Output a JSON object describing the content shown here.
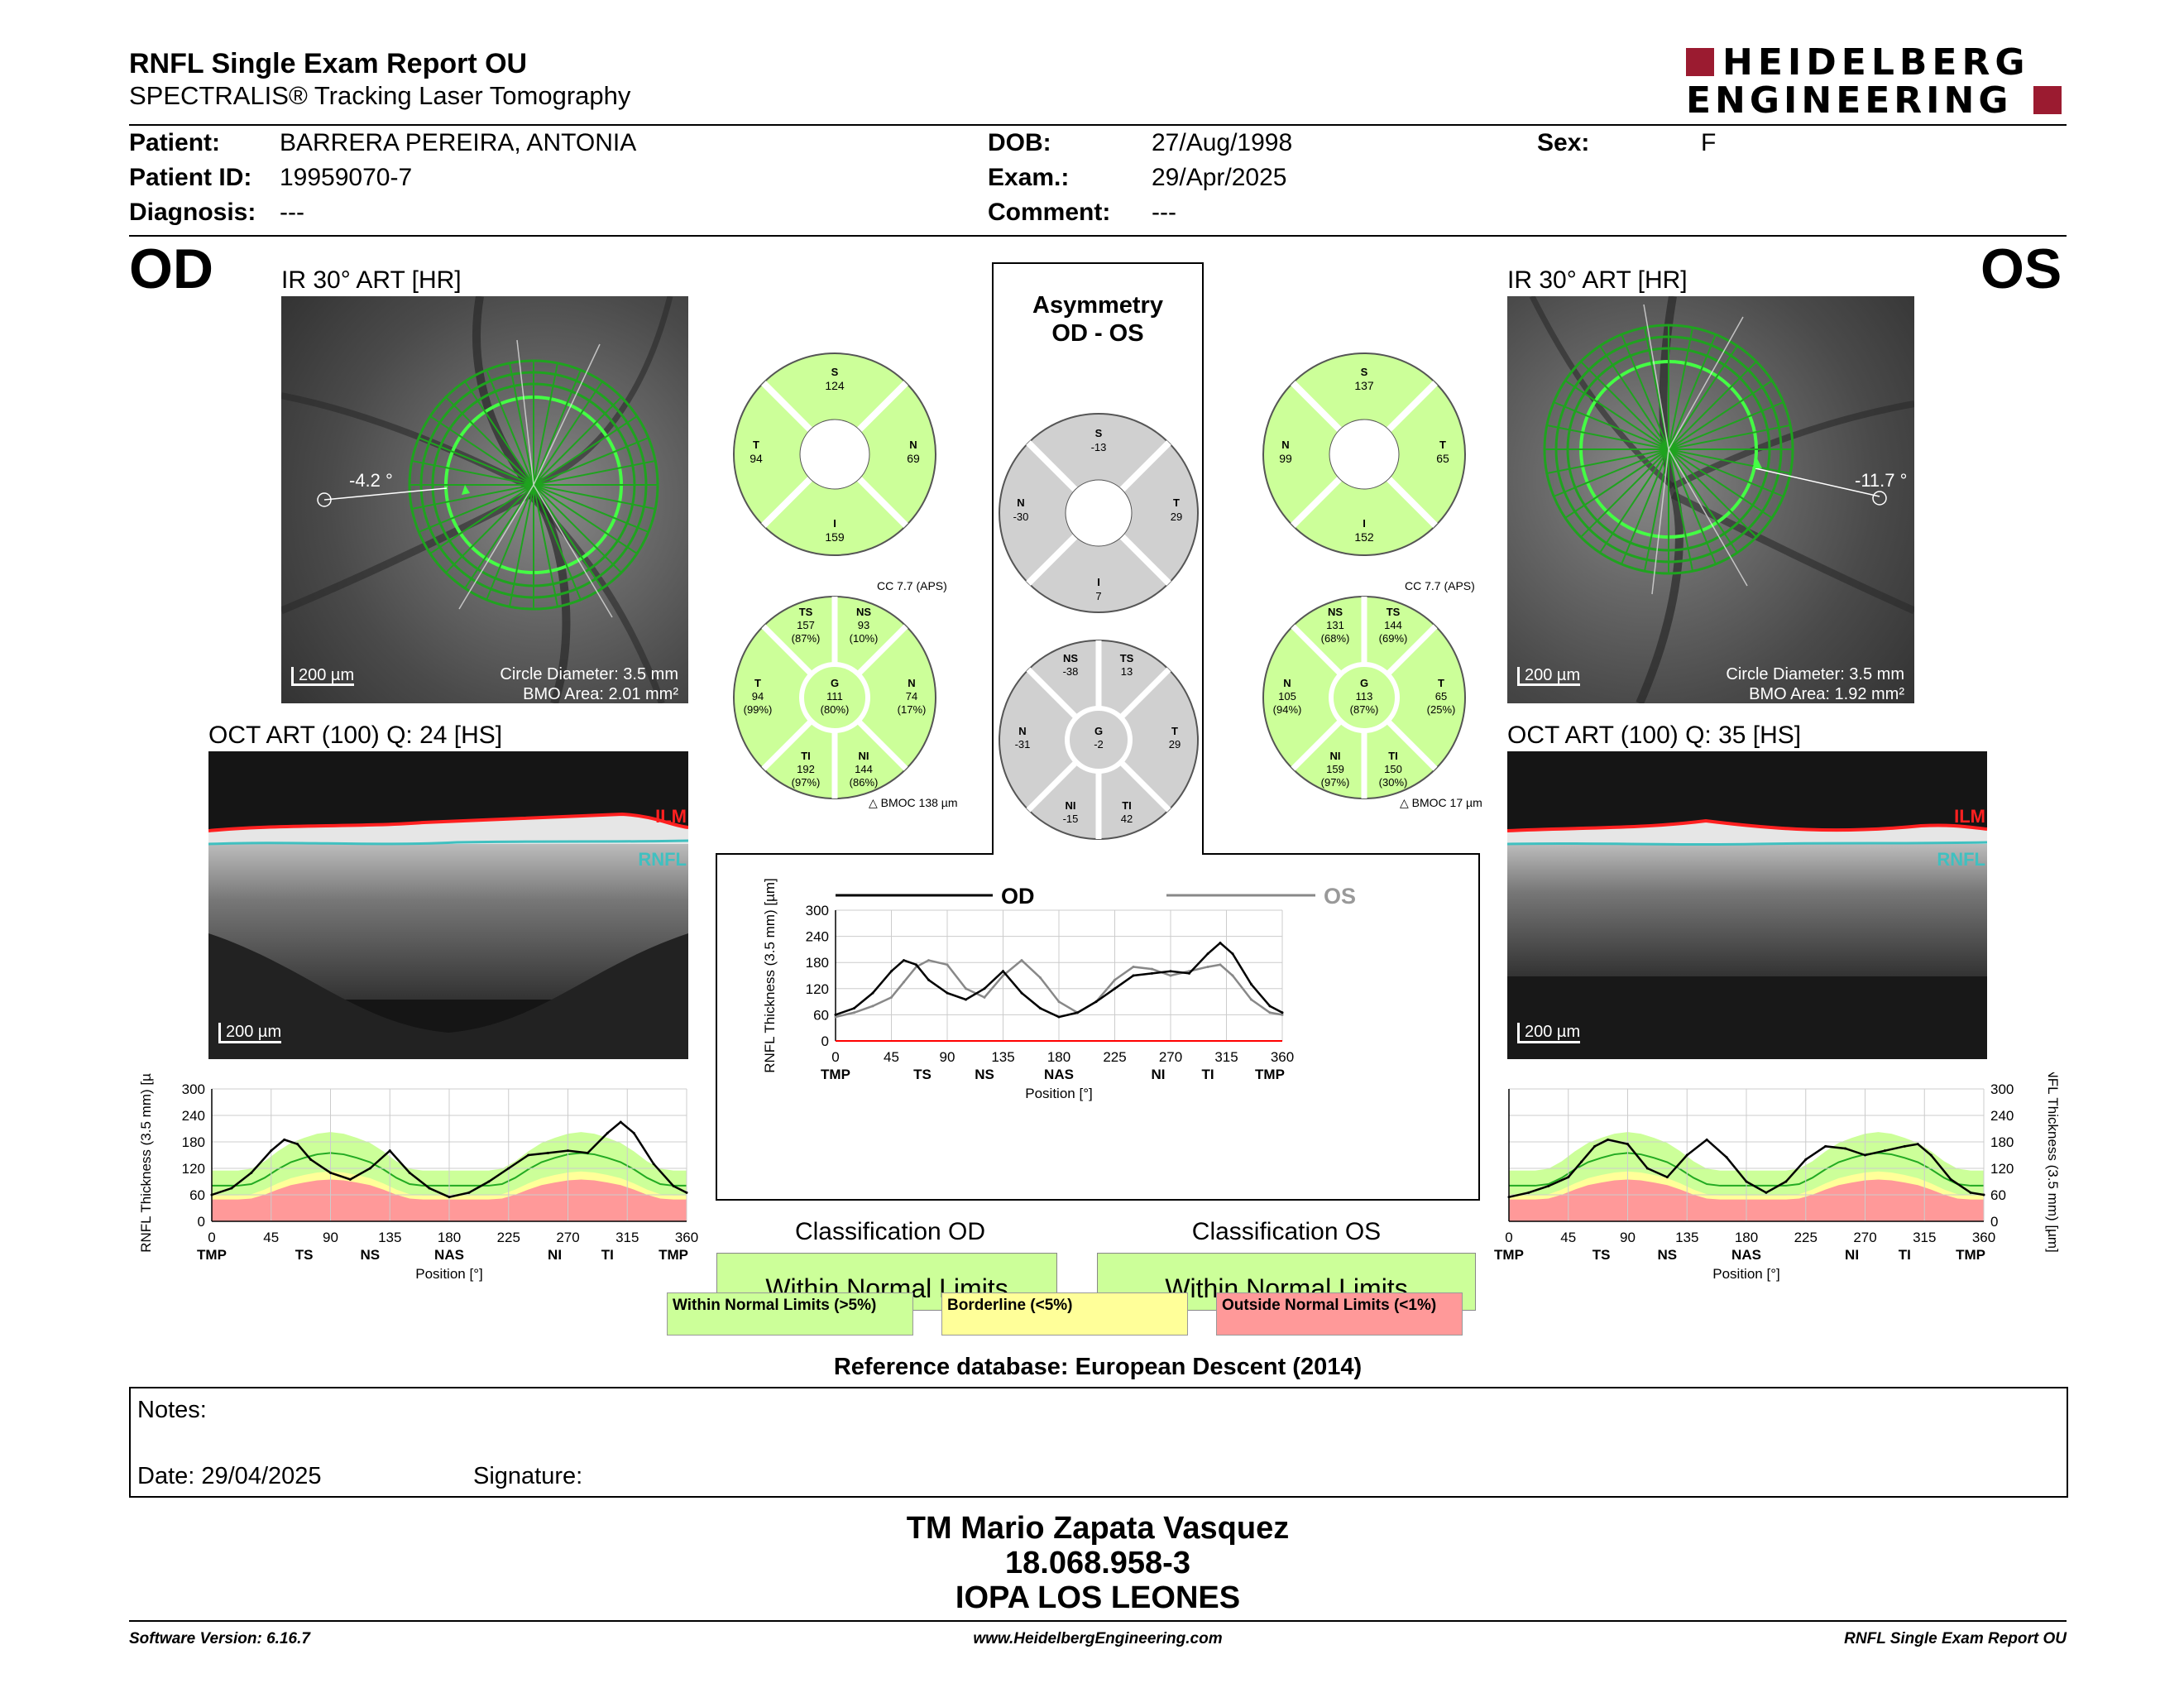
{
  "header": {
    "title": "RNFL Single Exam Report OU",
    "subtitle": "SPECTRALIS® Tracking Laser Tomography",
    "logo_line1": "HEIDELBERG",
    "logo_line2": "ENGINEERING"
  },
  "patient": {
    "patient_label": "Patient:",
    "patient_value": "BARRERA PEREIRA, ANTONIA",
    "id_label": "Patient ID:",
    "id_value": "19959070-7",
    "diag_label": "Diagnosis:",
    "diag_value": "---",
    "dob_label": "DOB:",
    "dob_value": "27/Aug/1998",
    "exam_label": "Exam.:",
    "exam_value": "29/Apr/2025",
    "comment_label": "Comment:",
    "comment_value": "---",
    "sex_label": "Sex:",
    "sex_value": "F"
  },
  "od": {
    "eye": "OD",
    "ir_title": "IR 30° ART [HR]",
    "angle": "-4.2 °",
    "scale": "200 µm",
    "circle_diameter": "Circle Diameter: 3.5 mm",
    "bmo_area": "BMO Area: 2.01 mm²",
    "oct_title": "OCT ART (100) Q: 24 [HS]",
    "ilm": "ILM",
    "rnfl": "RNFL",
    "oct_scale": "200 µm",
    "classification_title": "Classification OD",
    "classification": "Within Normal Limits",
    "quad": {
      "S": "124",
      "T": "94",
      "N": "69",
      "I": "159"
    },
    "sectors": {
      "cc": "CC 7.7 (APS)",
      "TS": [
        "157",
        "(87%)"
      ],
      "NS": [
        "93",
        "(10%)"
      ],
      "T": [
        "94",
        "(99%)"
      ],
      "G": [
        "111",
        "(80%)"
      ],
      "N": [
        "74",
        "(17%)"
      ],
      "TI": [
        "192",
        "(97%)"
      ],
      "NI": [
        "144",
        "(86%)"
      ],
      "bmoc": "BMOC 138 µm"
    }
  },
  "os": {
    "eye": "OS",
    "ir_title": "IR 30° ART [HR]",
    "angle": "-11.7 °",
    "scale": "200 µm",
    "circle_diameter": "Circle Diameter: 3.5 mm",
    "bmo_area": "BMO Area: 1.92 mm²",
    "oct_title": "OCT ART (100) Q: 35 [HS]",
    "ilm": "ILM",
    "rnfl": "RNFL",
    "oct_scale": "200 µm",
    "classification_title": "Classification OS",
    "classification": "Within Normal Limits",
    "quad": {
      "S": "137",
      "N": "99",
      "T": "65",
      "I": "152"
    },
    "sectors": {
      "cc": "CC 7.7 (APS)",
      "NS": [
        "131",
        "(68%)"
      ],
      "TS": [
        "144",
        "(69%)"
      ],
      "N": [
        "105",
        "(94%)"
      ],
      "G": [
        "113",
        "(87%)"
      ],
      "T": [
        "65",
        "(25%)"
      ],
      "NI": [
        "159",
        "(97%)"
      ],
      "TI": [
        "150",
        "(30%)"
      ],
      "bmoc": "BMOC 17 µm"
    }
  },
  "asymmetry": {
    "title1": "Asymmetry",
    "title2": "OD - OS",
    "quad": {
      "S": "-13",
      "N": "-30",
      "T": "29",
      "I": "7"
    },
    "sectors": {
      "NS": "-38",
      "TS": "13",
      "N": "-31",
      "G": "-2",
      "T": "29",
      "NI": "-15",
      "TI": "42"
    },
    "legend_od": "OD",
    "legend_os": "OS"
  },
  "charts_common": {
    "ylabel": "RNFL Thickness (3.5 mm) [µm]",
    "xlabel": "Position [°]",
    "x_ticks": [
      "0",
      "45",
      "90",
      "135",
      "180",
      "225",
      "270",
      "315",
      "360"
    ],
    "y_ticks": [
      "0",
      "60",
      "120",
      "180",
      "240",
      "300"
    ],
    "small_y_ticks": [
      "0",
      "60",
      "120",
      "180",
      "240",
      "300"
    ],
    "sector_labels": [
      [
        "TMP",
        0
      ],
      [
        "TS",
        70
      ],
      [
        "NS",
        120
      ],
      [
        "NAS",
        180
      ],
      [
        "NI",
        260
      ],
      [
        "TI",
        300
      ],
      [
        "TMP",
        350
      ]
    ]
  },
  "legend": {
    "normal": "Within Normal Limits (>5%)",
    "borderline": "Borderline (<5%)",
    "outside": "Outside Normal Limits (<1%)"
  },
  "reference": "Reference database: European Descent (2014)",
  "notes": {
    "notes_label": "Notes:",
    "date_label": "Date: 29/04/2025",
    "signature_label": "Signature:"
  },
  "signature_block": {
    "line1": "TM Mario Zapata Vasquez",
    "line2": "18.068.958-3",
    "line3": "IOPA LOS LEONES"
  },
  "footer": {
    "left": "Software Version: 6.16.7",
    "center": "www.HeidelbergEngineering.com",
    "right": "RNFL Single Exam Report OU"
  },
  "colors": {
    "normal": "#ccff99",
    "borderline": "#ffff99",
    "outside": "#ff9999",
    "asym_gray": "#d0d0d0",
    "brand_red": "#9b1b30",
    "ilm_red": "#ff2020",
    "rnfl_cyan": "#40c0c0"
  },
  "chart_data": [
    {
      "type": "line",
      "title": "OD",
      "xlabel": "Position [°]",
      "ylabel": "RNFL Thickness (3.5 mm) [µm]",
      "xlim": [
        0,
        360
      ],
      "ylim": [
        0,
        300
      ],
      "x": [
        0,
        15,
        30,
        45,
        55,
        65,
        75,
        90,
        105,
        120,
        135,
        150,
        165,
        180,
        195,
        210,
        225,
        240,
        255,
        270,
        285,
        300,
        310,
        320,
        335,
        350,
        360
      ],
      "series": [
        {
          "name": "OD",
          "values": [
            60,
            75,
            110,
            160,
            185,
            175,
            140,
            110,
            95,
            120,
            160,
            110,
            75,
            55,
            65,
            90,
            120,
            150,
            155,
            160,
            155,
            200,
            225,
            200,
            130,
            80,
            65
          ]
        }
      ]
    },
    {
      "type": "line",
      "title": "OS",
      "x": [
        0,
        15,
        30,
        45,
        55,
        65,
        75,
        90,
        105,
        120,
        135,
        150,
        165,
        180,
        195,
        210,
        225,
        240,
        255,
        270,
        285,
        300,
        310,
        320,
        335,
        350,
        360
      ],
      "series": [
        {
          "name": "OS",
          "values": [
            55,
            65,
            80,
            100,
            135,
            170,
            185,
            175,
            120,
            100,
            150,
            185,
            145,
            90,
            65,
            90,
            140,
            170,
            165,
            150,
            160,
            170,
            175,
            150,
            95,
            65,
            60
          ]
        }
      ]
    }
  ]
}
